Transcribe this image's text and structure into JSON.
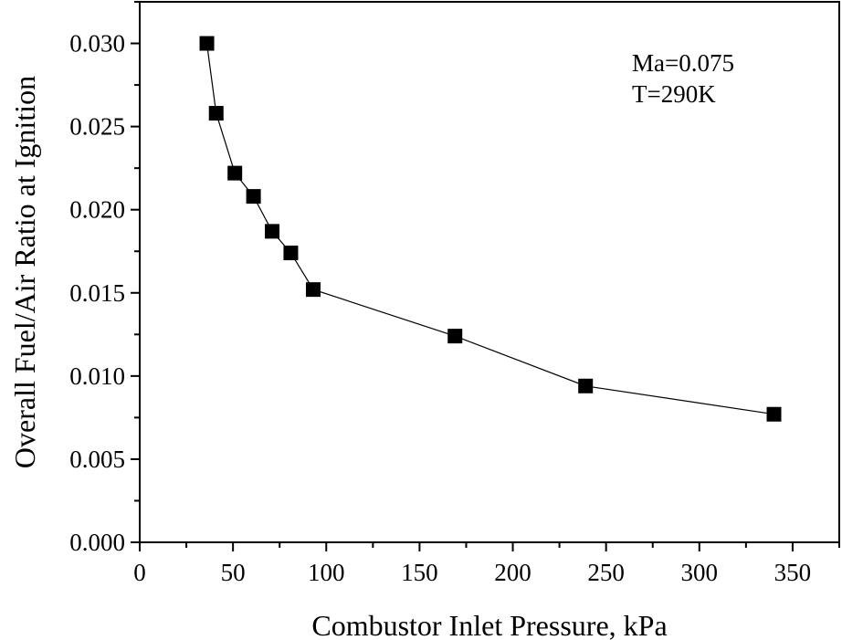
{
  "chart_data": {
    "type": "line",
    "title": "",
    "xlabel": "Combustor Inlet Pressure,  kPa",
    "ylabel": "Overall  Fuel/Air Ratio at Ignition",
    "xlim": [
      0,
      375
    ],
    "ylim": [
      0,
      0.0325
    ],
    "x_ticks": [
      0,
      50,
      100,
      150,
      200,
      250,
      300,
      350
    ],
    "x_tick_labels": [
      "0",
      "50",
      "100",
      "150",
      "200",
      "250",
      "300",
      "350"
    ],
    "y_ticks": [
      0,
      0.005,
      0.01,
      0.015,
      0.02,
      0.025,
      0.03
    ],
    "y_tick_labels": [
      "0.000",
      "0.005",
      "0.010",
      "0.015",
      "0.020",
      "0.025",
      "0.030"
    ],
    "grid": false,
    "annotations": [
      "Ma=0.075",
      "T=290K"
    ],
    "series": [
      {
        "name": "Ma=0.075, T=290K",
        "marker": "square",
        "color": "#000000",
        "x": [
          36,
          41,
          51,
          61,
          71,
          81,
          93,
          169,
          239,
          340
        ],
        "y": [
          0.03,
          0.0258,
          0.0222,
          0.0208,
          0.0187,
          0.0174,
          0.0152,
          0.0124,
          0.0094,
          0.0077
        ]
      }
    ]
  }
}
